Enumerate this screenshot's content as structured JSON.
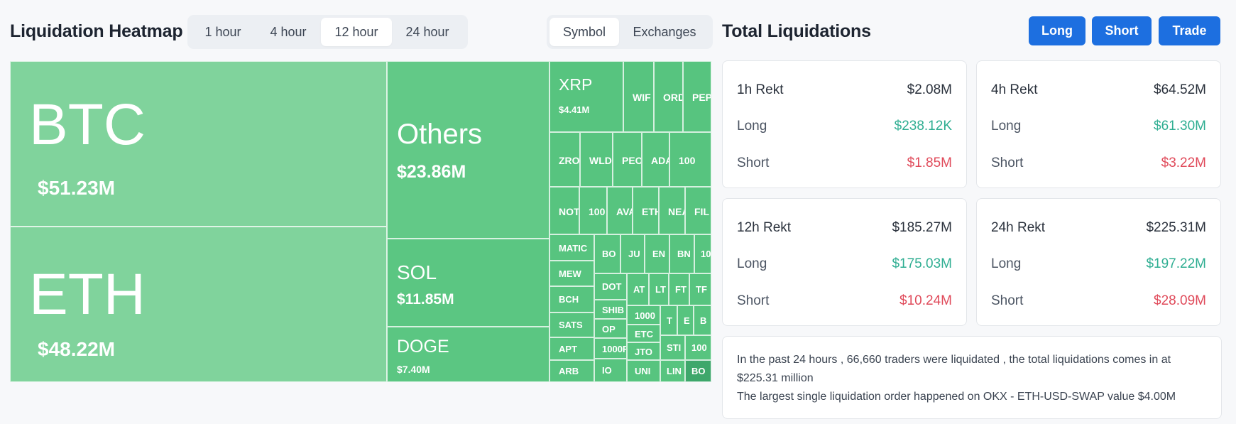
{
  "heatmap": {
    "title": "Liquidation Heatmap",
    "time_tabs": [
      "1 hour",
      "4 hour",
      "12 hour",
      "24 hour"
    ],
    "active_time_tab": "12 hour",
    "group_tabs": [
      "Symbol",
      "Exchanges"
    ],
    "active_group_tab": "Symbol",
    "tiles": [
      {
        "symbol": "BTC",
        "value": "$51.23M",
        "color": "#80d39c"
      },
      {
        "symbol": "ETH",
        "value": "$48.22M",
        "color": "#80d39c"
      },
      {
        "symbol": "Others",
        "value": "$23.86M",
        "color": "#62c987"
      },
      {
        "symbol": "SOL",
        "value": "$11.85M",
        "color": "#5bc682"
      },
      {
        "symbol": "DOGE",
        "value": "$7.40M",
        "color": "#5bc682"
      },
      {
        "symbol": "XRP",
        "value": "$4.41M",
        "color": "#57c47f"
      },
      {
        "symbol": "WIF",
        "color": "#57c47f"
      },
      {
        "symbol": "ORD",
        "color": "#57c47f"
      },
      {
        "symbol": "PEP",
        "color": "#57c47f"
      },
      {
        "symbol": "ZRO",
        "color": "#57c47f"
      },
      {
        "symbol": "WLD",
        "color": "#57c47f"
      },
      {
        "symbol": "PEO",
        "color": "#57c47f"
      },
      {
        "symbol": "ADA",
        "color": "#57c47f"
      },
      {
        "symbol": "100",
        "color": "#57c47f"
      },
      {
        "symbol": "NOT",
        "color": "#57c47f"
      },
      {
        "symbol": "100",
        "color": "#57c47f"
      },
      {
        "symbol": "AVA",
        "color": "#57c47f"
      },
      {
        "symbol": "ETH",
        "color": "#57c47f"
      },
      {
        "symbol": "NEA",
        "color": "#57c47f"
      },
      {
        "symbol": "FIL",
        "color": "#57c47f"
      },
      {
        "symbol": "MATIC",
        "color": "#57c47f"
      },
      {
        "symbol": "BO",
        "color": "#57c47f"
      },
      {
        "symbol": "JU",
        "color": "#57c47f"
      },
      {
        "symbol": "EN",
        "color": "#57c47f"
      },
      {
        "symbol": "BN",
        "color": "#57c47f"
      },
      {
        "symbol": "10",
        "color": "#57c47f"
      },
      {
        "symbol": "MEW",
        "color": "#57c47f"
      },
      {
        "symbol": "DOT",
        "color": "#57c47f"
      },
      {
        "symbol": "AT",
        "color": "#57c47f"
      },
      {
        "symbol": "LT",
        "color": "#57c47f"
      },
      {
        "symbol": "FT",
        "color": "#57c47f"
      },
      {
        "symbol": "TF",
        "color": "#57c47f"
      },
      {
        "symbol": "BCH",
        "color": "#57c47f"
      },
      {
        "symbol": "SHIB",
        "color": "#57c47f"
      },
      {
        "symbol": "SATS",
        "color": "#57c47f"
      },
      {
        "symbol": "OP",
        "color": "#57c47f"
      },
      {
        "symbol": "1000",
        "color": "#57c47f"
      },
      {
        "symbol": "T",
        "color": "#57c47f"
      },
      {
        "symbol": "E",
        "color": "#57c47f"
      },
      {
        "symbol": "B",
        "color": "#57c47f"
      },
      {
        "symbol": "ETC",
        "color": "#57c47f"
      },
      {
        "symbol": "APT",
        "color": "#57c47f"
      },
      {
        "symbol": "1000F",
        "color": "#57c47f"
      },
      {
        "symbol": "JTO",
        "color": "#57c47f"
      },
      {
        "symbol": "STI",
        "color": "#57c47f"
      },
      {
        "symbol": "100",
        "color": "#57c47f"
      },
      {
        "symbol": "ARB",
        "color": "#57c47f"
      },
      {
        "symbol": "IO",
        "color": "#57c47f"
      },
      {
        "symbol": "UNI",
        "color": "#57c47f"
      },
      {
        "symbol": "LIN",
        "color": "#57c47f"
      },
      {
        "symbol": "BO",
        "color": "#3ea76b"
      }
    ]
  },
  "liquidations": {
    "title": "Total Liquidations",
    "buttons": [
      "Long",
      "Short",
      "Trade"
    ],
    "cards": [
      {
        "period": "1h Rekt",
        "total": "$2.08M",
        "long_label": "Long",
        "long": "$238.12K",
        "short_label": "Short",
        "short": "$1.85M"
      },
      {
        "period": "4h Rekt",
        "total": "$64.52M",
        "long_label": "Long",
        "long": "$61.30M",
        "short_label": "Short",
        "short": "$3.22M"
      },
      {
        "period": "12h Rekt",
        "total": "$185.27M",
        "long_label": "Long",
        "long": "$175.03M",
        "short_label": "Short",
        "short": "$10.24M"
      },
      {
        "period": "24h Rekt",
        "total": "$225.31M",
        "long_label": "Long",
        "long": "$197.22M",
        "short_label": "Short",
        "short": "$28.09M"
      }
    ],
    "summary_line1": "In the past 24 hours , 66,660 traders were liquidated , the total liquidations comes in at $225.31 million",
    "summary_line2": "The largest single liquidation order happened on OKX - ETH-USD-SWAP value $4.00M",
    "colors": {
      "positive": "#2fae92",
      "negative": "#e04a5a",
      "button": "#1d6fe0"
    }
  }
}
